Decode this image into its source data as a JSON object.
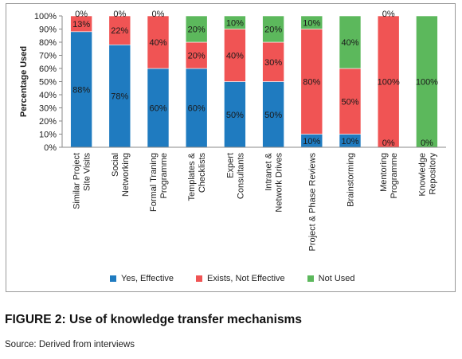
{
  "chart_data": {
    "type": "bar",
    "stacked": true,
    "categories": [
      [
        "Similar Project",
        "Site Visits"
      ],
      [
        "Social",
        "Networking"
      ],
      [
        "Formal Traning",
        "Programme"
      ],
      [
        "Templates &",
        "Checklists"
      ],
      [
        "Expert",
        "Consultants"
      ],
      [
        "Intranet &",
        "Network Drives"
      ],
      [
        "Project & Phase Reviews"
      ],
      [
        "Brainstorming"
      ],
      [
        "Mentoring",
        "Programme"
      ],
      [
        "Knowledge",
        "Repository"
      ]
    ],
    "series": [
      {
        "name": "Yes, Effective",
        "color": "#1f7bc0",
        "values": [
          88,
          78,
          60,
          60,
          50,
          50,
          10,
          10,
          0,
          0
        ]
      },
      {
        "name": "Exists, Not Effective",
        "color": "#f05454",
        "values": [
          13,
          22,
          40,
          20,
          40,
          30,
          80,
          50,
          100,
          0
        ]
      },
      {
        "name": "Not Used",
        "color": "#5cb85c",
        "values": [
          0,
          0,
          0,
          20,
          10,
          20,
          10,
          40,
          0,
          100
        ]
      }
    ],
    "data_labels": [
      [
        "88%",
        "13%",
        "0%"
      ],
      [
        "78%",
        "22%",
        "0%"
      ],
      [
        "60%",
        "40%",
        "0%"
      ],
      [
        "60%",
        "20%",
        "20%"
      ],
      [
        "50%",
        "40%",
        "10%"
      ],
      [
        "50%",
        "30%",
        "20%"
      ],
      [
        "10%",
        "80%",
        "10%"
      ],
      [
        "10%",
        "50%",
        "40%"
      ],
      [
        "0%",
        "100%",
        "0%"
      ],
      [
        "0%",
        "",
        "100%"
      ]
    ],
    "ylabel": "Percentage Used",
    "xlabel": "",
    "ylim": [
      0,
      100
    ],
    "yticks": [
      "0%",
      "10%",
      "20%",
      "30%",
      "40%",
      "50%",
      "60%",
      "70%",
      "80%",
      "90%",
      "100%"
    ],
    "grid": false,
    "legend": "bottom"
  },
  "caption": "FIGURE 2:  Use of knowledge transfer mechanisms",
  "source": "Source: Derived from interviews"
}
